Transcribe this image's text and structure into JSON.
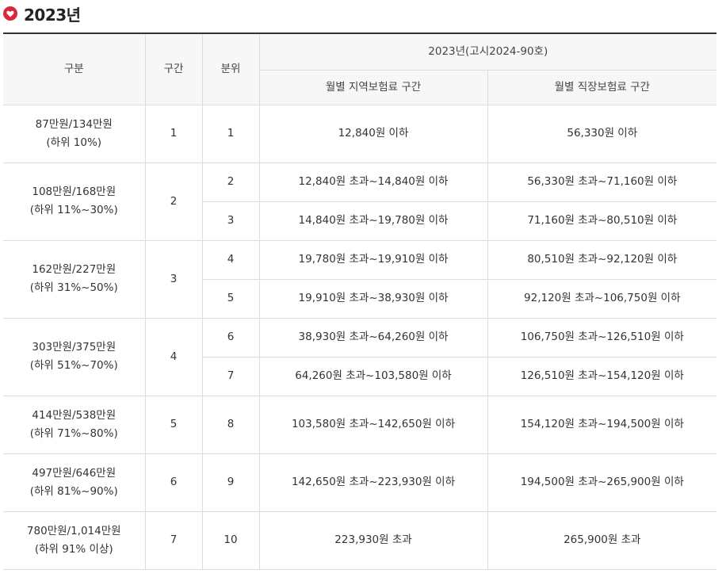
{
  "heading": {
    "title": "2023년",
    "icon": "heart-icon"
  },
  "colors": {
    "icon": "#d9283a",
    "top_rule": "#333333",
    "header_bg": "#f7f7f7",
    "grid": "#dddddd"
  },
  "table": {
    "headers": {
      "group": "구분",
      "section": "구간",
      "decile": "분위",
      "notice": "2023년(고시2024-90호)",
      "regional": "월별 지역보험료 구간",
      "workplace": "월별 직장보험료 구간"
    },
    "groups": [
      {
        "income": "87만원/134만원",
        "range": "(하위 10%)",
        "section": "1",
        "rows": [
          {
            "decile": "1",
            "regional": "12,840원 이하",
            "workplace": "56,330원 이하"
          }
        ]
      },
      {
        "income": "108만원/168만원",
        "range": "(하위 11%~30%)",
        "section": "2",
        "rows": [
          {
            "decile": "2",
            "regional": "12,840원 초과~14,840원 이하",
            "workplace": "56,330원 초과~71,160원 이하"
          },
          {
            "decile": "3",
            "regional": "14,840원 초과~19,780원 이하",
            "workplace": "71,160원 초과~80,510원 이하"
          }
        ]
      },
      {
        "income": "162만원/227만원",
        "range": "(하위 31%~50%)",
        "section": "3",
        "rows": [
          {
            "decile": "4",
            "regional": "19,780원 초과~19,910원 이하",
            "workplace": "80,510원 초과~92,120원 이하"
          },
          {
            "decile": "5",
            "regional": "19,910원 초과~38,930원 이하",
            "workplace": "92,120원 초과~106,750원 이하"
          }
        ]
      },
      {
        "income": "303만원/375만원",
        "range": "(하위 51%~70%)",
        "section": "4",
        "rows": [
          {
            "decile": "6",
            "regional": "38,930원 초과~64,260원 이하",
            "workplace": "106,750원 초과~126,510원 이하"
          },
          {
            "decile": "7",
            "regional": "64,260원 초과~103,580원 이하",
            "workplace": "126,510원 초과~154,120원 이하"
          }
        ]
      },
      {
        "income": "414만원/538만원",
        "range": "(하위 71%~80%)",
        "section": "5",
        "rows": [
          {
            "decile": "8",
            "regional": "103,580원 초과~142,650원 이하",
            "workplace": "154,120원 초과~194,500원 이하"
          }
        ]
      },
      {
        "income": "497만원/646만원",
        "range": "(하위 81%~90%)",
        "section": "6",
        "rows": [
          {
            "decile": "9",
            "regional": "142,650원 초과~223,930원 이하",
            "workplace": "194,500원 초과~265,900원 이하"
          }
        ]
      },
      {
        "income": "780만원/1,014만원",
        "range": "(하위 91% 이상)",
        "section": "7",
        "rows": [
          {
            "decile": "10",
            "regional": "223,930원 초과",
            "workplace": "265,900원 초과"
          }
        ]
      }
    ]
  }
}
